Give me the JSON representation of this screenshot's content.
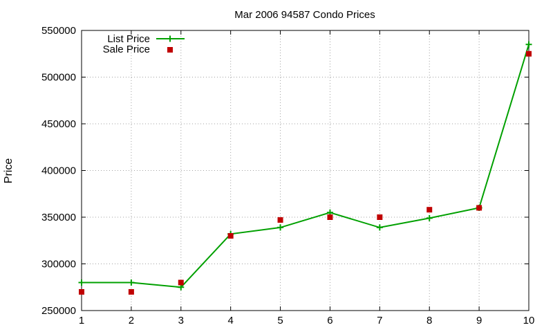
{
  "chart_data": {
    "type": "line",
    "title": "Mar 2006 94587 Condo Prices",
    "xlabel": "",
    "ylabel": "Price",
    "xlim": [
      1,
      10
    ],
    "ylim": [
      250000,
      550000
    ],
    "x_ticks": [
      1,
      2,
      3,
      4,
      5,
      6,
      7,
      8,
      9,
      10
    ],
    "y_ticks": [
      250000,
      300000,
      350000,
      400000,
      450000,
      500000,
      550000
    ],
    "grid": true,
    "legend_position": "top-left",
    "x": [
      1,
      2,
      3,
      4,
      5,
      6,
      7,
      8,
      9,
      10
    ],
    "series": [
      {
        "name": "List Price",
        "style": "line+crosses",
        "color": "#00a000",
        "values": [
          280000,
          280000,
          275000,
          332000,
          339000,
          355000,
          339000,
          349000,
          360000,
          535000
        ]
      },
      {
        "name": "Sale Price",
        "style": "squares",
        "color": "#c00000",
        "values": [
          270000,
          270000,
          280000,
          330000,
          347000,
          350000,
          350000,
          358000,
          360000,
          525000
        ]
      }
    ]
  }
}
